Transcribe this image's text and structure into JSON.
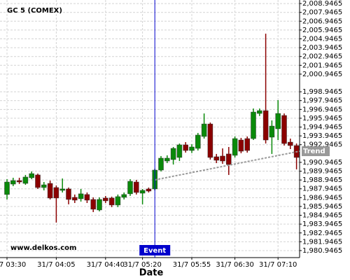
{
  "chart_data": {
    "type": "candlestick",
    "title": "GC 5 (COMEX)",
    "watermark": "www.delkos.com",
    "x_label": "Date",
    "up_color": "#0a8a0a",
    "down_color": "#8b0000",
    "grid": true,
    "categories": [
      "31/7 03:30",
      null,
      null,
      null,
      null,
      null,
      null,
      null,
      "31/7 04:05",
      null,
      null,
      null,
      null,
      null,
      null,
      null,
      "31/7 04:40",
      null,
      null,
      null,
      null,
      null,
      "31/7 05:20",
      null,
      null,
      null,
      null,
      null,
      null,
      null,
      "31/7 05:55",
      null,
      null,
      null,
      null,
      null,
      null,
      "31/7 06:30",
      null,
      null,
      null,
      null,
      null,
      null,
      "31/7 07:10",
      null,
      null,
      null
    ],
    "open": [
      1987.3,
      1988.48,
      1988.88,
      1988.56,
      1989.2,
      1989.52,
      1988.09,
      1988.56,
      1988.09,
      1987.77,
      1987.93,
      1986.98,
      1986.82,
      1987.3,
      1986.74,
      1985.55,
      1986.9,
      1986.9,
      1986.11,
      1986.98,
      1987.38,
      1988.72,
      1987.45,
      1987.93,
      1987.93,
      1990.07,
      1991.1,
      1991.26,
      1991.5,
      1992.93,
      1992.29,
      1992.53,
      1993.88,
      1995.3,
      1991.58,
      1991.66,
      1991.9,
      1991.74,
      1993.48,
      1993.64,
      1993.64,
      1996.49,
      1996.81,
      1993.8,
      1994.75,
      1996.26,
      1993.24,
      1992.85
    ],
    "high": [
      1989.04,
      1989.2,
      1989.2,
      1989.52,
      1989.91,
      1989.67,
      1988.72,
      1988.88,
      1988.33,
      1989.12,
      1988.09,
      1987.3,
      1987.93,
      1987.53,
      1986.98,
      1986.98,
      1987.14,
      1987.06,
      1987.3,
      1987.53,
      1989.04,
      1988.96,
      1987.93,
      1988.09,
      1990.23,
      1991.66,
      1991.74,
      1992.69,
      1993.08,
      1993.24,
      1993.0,
      1994.28,
      1996.49,
      1995.46,
      1991.9,
      1992.53,
      1992.69,
      1993.88,
      1993.72,
      1993.88,
      1997.05,
      1997.05,
      2005.53,
      1995.7,
      1998.0,
      1996.49,
      1993.64,
      1993.08
    ],
    "low": [
      1986.74,
      1988.25,
      1988.5,
      1988.4,
      1989.04,
      1987.93,
      1987.77,
      1986.74,
      1984.12,
      1987.53,
      1986.19,
      1986.34,
      1986.5,
      1986.34,
      1985.31,
      1985.39,
      1986.34,
      1985.87,
      1985.87,
      1986.74,
      1987.14,
      1987.3,
      1986.19,
      1987.53,
      1987.77,
      1989.91,
      1990.86,
      1990.7,
      1991.1,
      1992.05,
      1992.0,
      1992.29,
      1993.64,
      1991.26,
      1990.86,
      1990.78,
      1989.52,
      1991.5,
      1991.98,
      1992.05,
      1993.48,
      1996.2,
      1993.08,
      1991.9,
      1993.48,
      1992.85,
      1992.45,
      1990.15
    ],
    "close": [
      1988.72,
      1988.88,
      1988.72,
      1989.28,
      1989.67,
      1988.09,
      1988.4,
      1986.9,
      1986.9,
      1987.93,
      1986.74,
      1986.66,
      1987.38,
      1986.66,
      1985.63,
      1986.74,
      1986.58,
      1986.11,
      1987.06,
      1987.3,
      1988.8,
      1987.53,
      1987.77,
      1987.69,
      1990.07,
      1991.42,
      1991.42,
      1992.53,
      1992.93,
      1992.29,
      1992.69,
      1994.04,
      1995.3,
      1991.5,
      1991.18,
      1991.1,
      1990.7,
      1993.64,
      1992.21,
      1992.29,
      1996.65,
      1996.81,
      1993.48,
      1995.06,
      1996.49,
      1993.08,
      1992.85,
      1991.5
    ],
    "ylim": [
      1980.15,
      2009.35
    ],
    "yticks": [
      {
        "value": 1980.9465,
        "label": "1,980.9465"
      },
      {
        "value": 1981.9465,
        "label": "1,981.9465"
      },
      {
        "value": 1982.9465,
        "label": "1,982.9465"
      },
      {
        "value": 1983.9465,
        "label": "1,983.9465"
      },
      {
        "value": 1984.9465,
        "label": "1,984.9465"
      },
      {
        "value": 1985.9465,
        "label": "1,985.9465"
      },
      {
        "value": 1986.9465,
        "label": "1,986.9465"
      },
      {
        "value": 1987.9465,
        "label": "1,987.9465"
      },
      {
        "value": 1988.9465,
        "label": "1,988.9465"
      },
      {
        "value": 1989.9465,
        "label": "1,989.9465"
      },
      {
        "value": 1990.9465,
        "label": "1,990.9465"
      },
      {
        "value": 1992.9465,
        "label": "1,992.9465"
      },
      {
        "value": 1993.9465,
        "label": "1,993.9465"
      },
      {
        "value": 1994.9465,
        "label": "1,994.9465"
      },
      {
        "value": 1995.9465,
        "label": "1,995.9465"
      },
      {
        "value": 1996.9465,
        "label": "1,996.9465"
      },
      {
        "value": 1997.9465,
        "label": "1,997.9465"
      },
      {
        "value": 1998.9465,
        "label": "1,998.9465"
      },
      {
        "value": 2000.9465,
        "label": "2,000.9465"
      },
      {
        "value": 2001.9465,
        "label": "2,001.9465"
      },
      {
        "value": 2002.9465,
        "label": "2,002.9465"
      },
      {
        "value": 2003.9465,
        "label": "2,003.9465"
      },
      {
        "value": 2004.9465,
        "label": "2,004.9465"
      },
      {
        "value": 2005.9465,
        "label": "2,005.9465"
      },
      {
        "value": 2006.9465,
        "label": "2,006.9465"
      },
      {
        "value": 2007.9465,
        "label": "2,007.9465"
      },
      {
        "value": 2008.9465,
        "label": "2,008.9465"
      }
    ],
    "event": {
      "label": "Event",
      "index": 24,
      "color": "#0000cc"
    },
    "trend": {
      "label": "Trend",
      "from_index": 24,
      "from_value": 1988.96,
      "to_value": 1992.21,
      "color": "#999999"
    }
  }
}
